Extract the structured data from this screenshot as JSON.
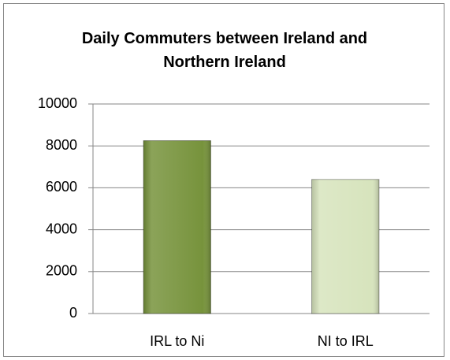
{
  "chart_data": {
    "type": "bar",
    "title": "Daily Commuters between Ireland and Northern Ireland",
    "categories": [
      "IRL to Ni",
      "NI to IRL"
    ],
    "values": [
      8250,
      6400
    ],
    "colors": [
      "#77933c",
      "#d7e4bd"
    ],
    "ylim": [
      0,
      10000
    ],
    "yticks": [
      0,
      2000,
      4000,
      6000,
      8000,
      10000
    ],
    "grid": true
  }
}
